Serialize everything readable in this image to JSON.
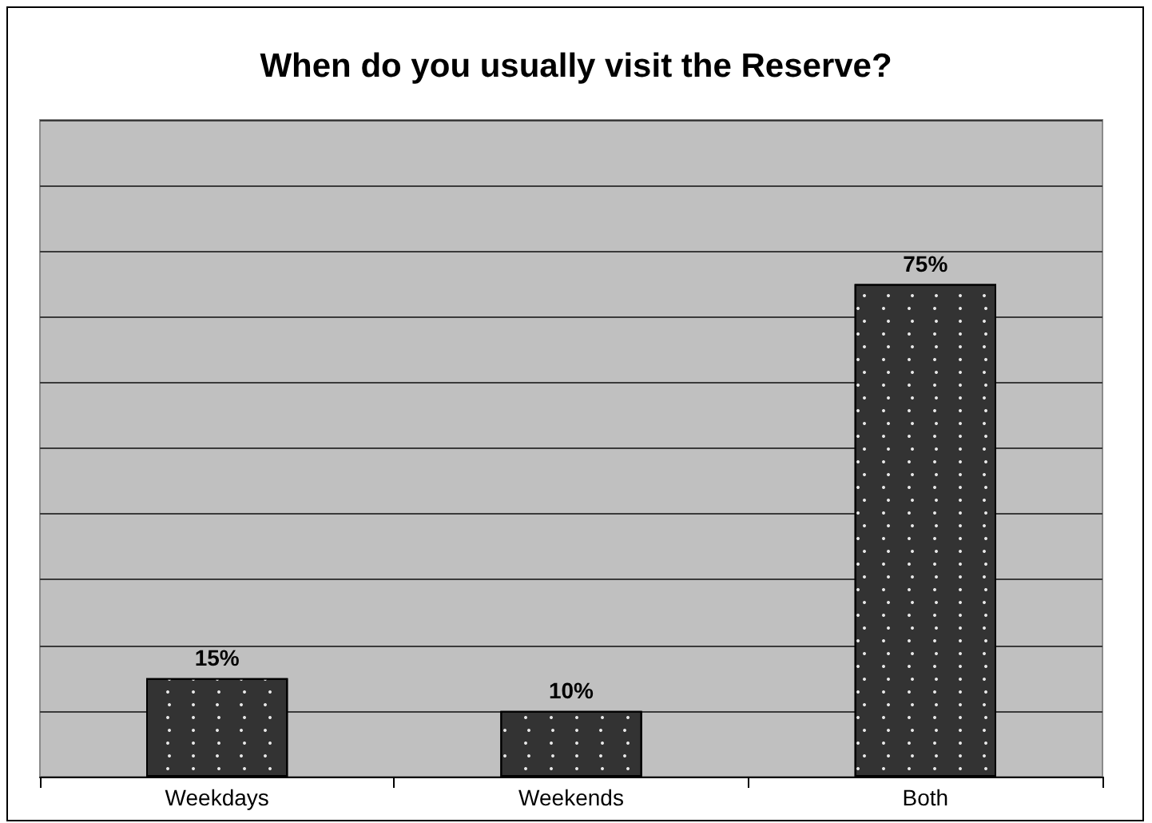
{
  "chart_data": {
    "type": "bar",
    "title": "When do you usually visit the Reserve?",
    "categories": [
      "Weekdays",
      "Weekends",
      "Both"
    ],
    "values": [
      15,
      10,
      75
    ],
    "value_labels": [
      "15%",
      "10%",
      "75%"
    ],
    "color": "#333333",
    "ylim": [
      0,
      100
    ],
    "yticks": [
      {
        "value": 0,
        "label": null
      },
      {
        "value": 10,
        "label": null
      },
      {
        "value": 20,
        "label": null
      },
      {
        "value": 30,
        "label": null
      },
      {
        "value": 40,
        "label": null
      },
      {
        "value": 50,
        "label": null
      },
      {
        "value": 60,
        "label": null
      },
      {
        "value": 70,
        "label": null
      },
      {
        "value": 80,
        "label": null
      },
      {
        "value": 90,
        "label": null
      },
      {
        "value": 100,
        "label": null
      }
    ],
    "grid": "y",
    "tick_labels": "x"
  }
}
